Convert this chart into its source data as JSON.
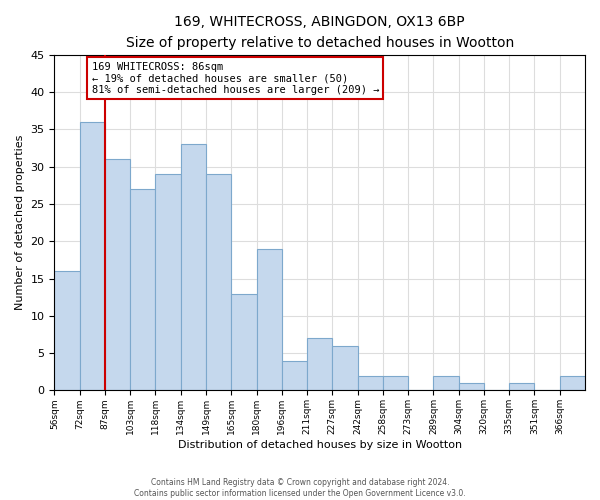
{
  "title": "169, WHITECROSS, ABINGDON, OX13 6BP",
  "subtitle": "Size of property relative to detached houses in Wootton",
  "xlabel": "Distribution of detached houses by size in Wootton",
  "ylabel": "Number of detached properties",
  "bin_labels": [
    "56sqm",
    "72sqm",
    "87sqm",
    "103sqm",
    "118sqm",
    "134sqm",
    "149sqm",
    "165sqm",
    "180sqm",
    "196sqm",
    "211sqm",
    "227sqm",
    "242sqm",
    "258sqm",
    "273sqm",
    "289sqm",
    "304sqm",
    "320sqm",
    "335sqm",
    "351sqm",
    "366sqm"
  ],
  "bar_values": [
    16,
    36,
    31,
    27,
    29,
    33,
    29,
    13,
    19,
    4,
    7,
    6,
    2,
    2,
    0,
    2,
    1,
    0,
    1,
    0,
    2
  ],
  "bar_color": "#c5d8ed",
  "bar_edge_color": "#7da8cc",
  "highlight_line_index": 2,
  "highlight_line_color": "#cc0000",
  "annotation_title": "169 WHITECROSS: 86sqm",
  "annotation_line1": "← 19% of detached houses are smaller (50)",
  "annotation_line2": "81% of semi-detached houses are larger (209) →",
  "annotation_box_color": "#ffffff",
  "annotation_box_edge_color": "#cc0000",
  "ylim": [
    0,
    45
  ],
  "yticks": [
    0,
    5,
    10,
    15,
    20,
    25,
    30,
    35,
    40,
    45
  ],
  "footer_line1": "Contains HM Land Registry data © Crown copyright and database right 2024.",
  "footer_line2": "Contains public sector information licensed under the Open Government Licence v3.0.",
  "background_color": "#ffffff",
  "grid_color": "#dddddd"
}
